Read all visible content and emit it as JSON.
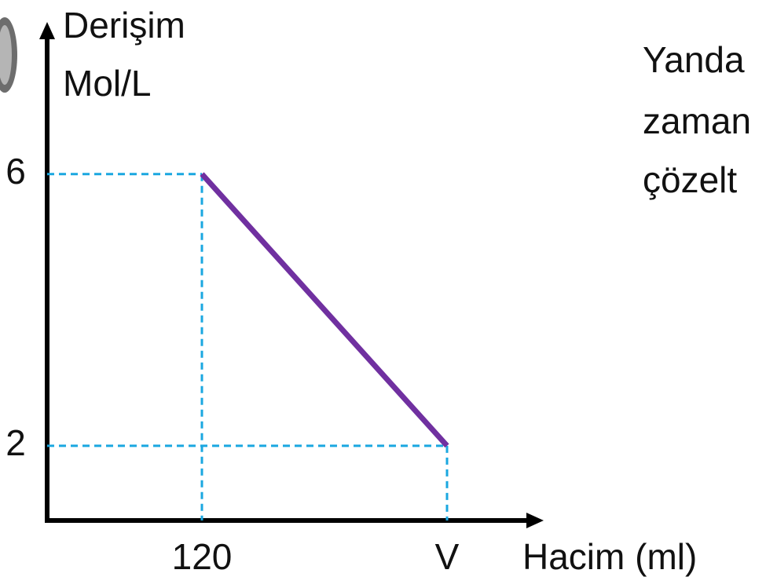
{
  "chart_data": {
    "type": "line",
    "ylabel": [
      "Derişim",
      "Mol/L"
    ],
    "xlabel": "Hacim (ml)",
    "categories": [
      "120",
      "V"
    ],
    "values": [
      6,
      2
    ],
    "color": "#7030a0",
    "guide_color": "#1aa7e0",
    "ylim": [
      0.9,
      8.1
    ],
    "yticks": [
      2,
      6
    ],
    "annotations": [
      "Yanda",
      "zaman",
      "çözelt"
    ]
  }
}
